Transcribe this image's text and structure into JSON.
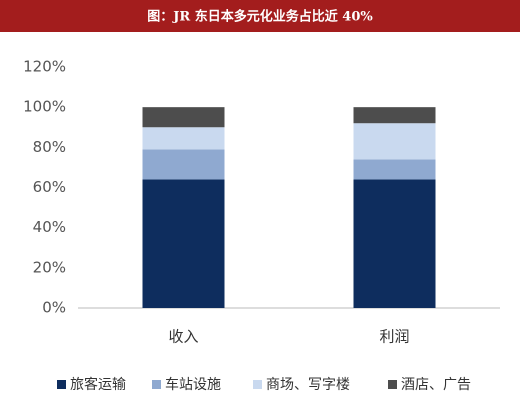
{
  "chart_data": {
    "type": "stacked-bar",
    "title": "图：JR 东日本多元化业务占比近 40%",
    "categories": [
      "收入",
      "利润"
    ],
    "series": [
      {
        "name": "旅客运输",
        "color": "#0e2d5e",
        "values": [
          64,
          64
        ]
      },
      {
        "name": "车站设施",
        "color": "#8fa9d0",
        "values": [
          15,
          10
        ]
      },
      {
        "name": "商场、写字楼",
        "color": "#c9d9ef",
        "values": [
          11,
          18
        ]
      },
      {
        "name": "酒店、广告",
        "color": "#4d4d4d",
        "values": [
          10,
          8
        ]
      }
    ],
    "ylim": [
      0,
      120
    ],
    "yticks": [
      {
        "value": 0,
        "label": "0%"
      },
      {
        "value": 20,
        "label": "20%"
      },
      {
        "value": 40,
        "label": "40%"
      },
      {
        "value": 60,
        "label": "60%"
      },
      {
        "value": 80,
        "label": "80%"
      },
      {
        "value": 100,
        "label": "100%"
      },
      {
        "value": 120,
        "label": "120%"
      }
    ],
    "legend": "bottom"
  }
}
